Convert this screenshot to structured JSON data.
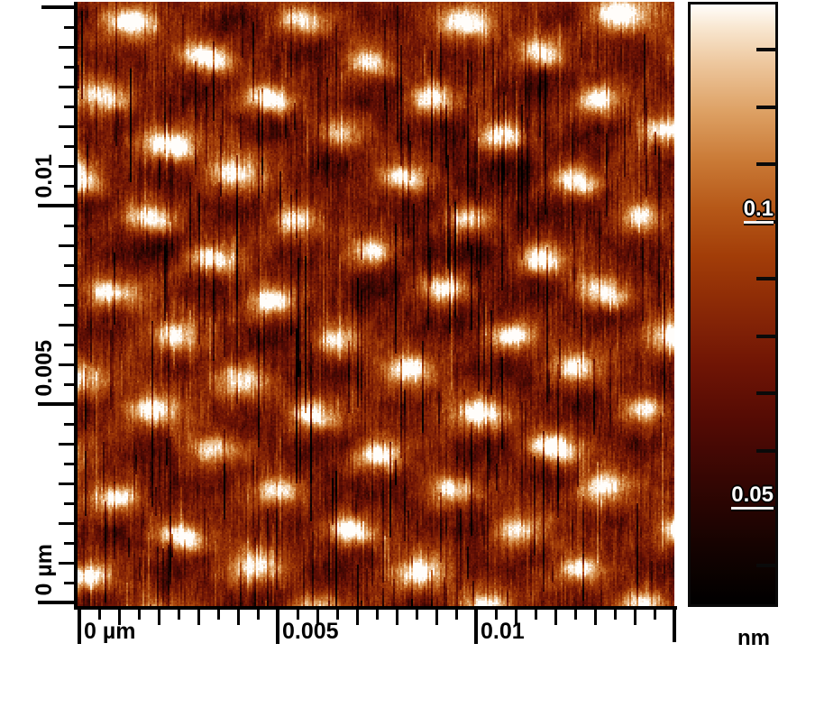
{
  "figure": {
    "kind": "AFM topography scan with rulers and height color scale",
    "background_color": "#ffffff",
    "axis_color": "#000000"
  },
  "chart_data": {
    "type": "heatmap",
    "title": "",
    "x_axis": {
      "unit": "µm",
      "range_um": [
        0,
        0.015
      ],
      "minor_tick_step_um": 0.0005,
      "major_ticks": [
        {
          "value": 0,
          "label": "0 µm"
        },
        {
          "value": 0.005,
          "label": "0.005"
        },
        {
          "value": 0.01,
          "label": "0.01"
        }
      ]
    },
    "y_axis": {
      "unit": "µm",
      "range_um": [
        0,
        0.015
      ],
      "minor_tick_step_um": 0.0005,
      "major_ticks": [
        {
          "value": 0,
          "label": "0 µm"
        },
        {
          "value": 0.005,
          "label": "0.005"
        },
        {
          "value": 0.01,
          "label": "0.01"
        }
      ]
    },
    "colorbar": {
      "unit_label": "nm",
      "minor_tick_count": 10,
      "labels": [
        {
          "text": "0.1",
          "tick_index": 3
        },
        {
          "text": "0.05",
          "tick_index": 8
        }
      ],
      "gradient_stops": [
        {
          "t": 0.0,
          "color": "#000000"
        },
        {
          "t": 0.1,
          "color": "#160301"
        },
        {
          "t": 0.2,
          "color": "#330603"
        },
        {
          "t": 0.3,
          "color": "#520a04"
        },
        {
          "t": 0.4,
          "color": "#701505"
        },
        {
          "t": 0.5,
          "color": "#8c2a06"
        },
        {
          "t": 0.58,
          "color": "#a23d08"
        },
        {
          "t": 0.66,
          "color": "#b65818"
        },
        {
          "t": 0.74,
          "color": "#ca7a36"
        },
        {
          "t": 0.82,
          "color": "#dda063"
        },
        {
          "t": 0.9,
          "color": "#edc69c"
        },
        {
          "t": 0.96,
          "color": "#f8e6cf"
        },
        {
          "t": 1.0,
          "color": "#fffdfa"
        }
      ]
    },
    "surface": {
      "description": "Quasi-periodic staggered diagonal rows of bright oval protrusions (white-topped crescents with dark troughs beneath) on an orange-brown background, overlaid with strong thin vertical scan-streak noise",
      "approx_feature_spacing_um": 0.002,
      "height_labels_nm": [
        0.05,
        0.1
      ]
    }
  }
}
